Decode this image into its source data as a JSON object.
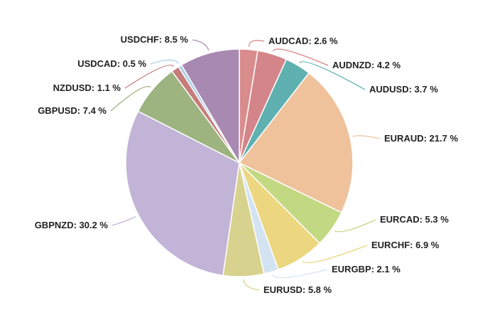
{
  "chart_data": {
    "type": "pie",
    "start_angle_deg": 0,
    "direction": "clockwise",
    "slices": [
      {
        "label": "AUDCAD",
        "value": 2.6,
        "display": "AUDCAD: 2.6 %",
        "color": "#d98c8c"
      },
      {
        "label": "AUDNZD",
        "value": 4.2,
        "display": "AUDNZD: 4.2 %",
        "color": "#d4858a"
      },
      {
        "label": "AUDUSD",
        "value": 3.7,
        "display": "AUDUSD: 3.7 %",
        "color": "#5fb0b0"
      },
      {
        "label": "EURAUD",
        "value": 21.7,
        "display": "EURAUD: 21.7 %",
        "color": "#efc29b"
      },
      {
        "label": "EURCAD",
        "value": 5.3,
        "display": "EURCAD: 5.3 %",
        "color": "#c3d883"
      },
      {
        "label": "EURCHF",
        "value": 6.9,
        "display": "EURCHF: 6.9 %",
        "color": "#ecd680"
      },
      {
        "label": "EURGBP",
        "value": 2.1,
        "display": "EURGBP: 2.1 %",
        "color": "#d4e3f2"
      },
      {
        "label": "EURUSD",
        "value": 5.8,
        "display": "EURUSD: 5.8 %",
        "color": "#d8d28f"
      },
      {
        "label": "GBPNZD",
        "value": 30.2,
        "display": "GBPNZD: 30.2 %",
        "color": "#c2b4d6"
      },
      {
        "label": "GBPUSD",
        "value": 7.4,
        "display": "GBPUSD: 7.4 %",
        "color": "#9db380"
      },
      {
        "label": "NZDUSD",
        "value": 1.1,
        "display": "NZDUSD: 1.1 %",
        "color": "#c77c7c"
      },
      {
        "label": "USDCAD",
        "value": 0.5,
        "display": "USDCAD: 0.5 %",
        "color": "#a9cfe6"
      },
      {
        "label": "USDCHF",
        "value": 8.5,
        "display": "USDCHF: 8.5 %",
        "color": "#a889b2"
      }
    ]
  }
}
